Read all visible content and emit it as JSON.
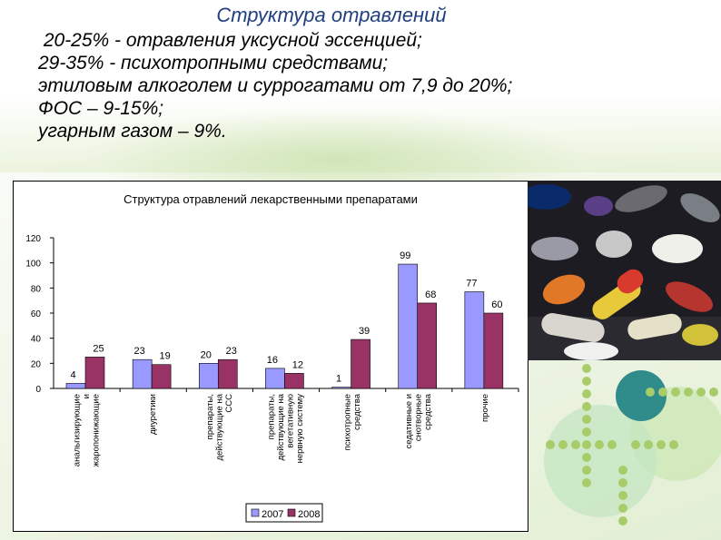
{
  "heading": {
    "title": "Структура отравлений",
    "lines": [
      " 20-25% - отравления уксусной эссенцией;",
      "29-35% - психотропными средствами;",
      "этиловым алкоголем и суррогатами от 7,9 до 20%;",
      "ФОС – 9-15%;",
      "угарным газом – 9%."
    ]
  },
  "chart_data": {
    "type": "bar",
    "title": "Структура отравлений лекарственными препаратами",
    "categories": [
      [
        "анальгизирующие",
        "и",
        "жаропонижающие"
      ],
      [
        "диуретики"
      ],
      [
        "препараты,",
        "действующие на",
        "ССС"
      ],
      [
        "препараты,",
        "действующие на",
        "вегетативную",
        "нервную систему"
      ],
      [
        "психотропные",
        "средства"
      ],
      [
        "седативные и",
        "снотворные",
        "средства"
      ],
      [
        "прочие"
      ]
    ],
    "series": [
      {
        "name": "2007",
        "color": "#9999ff",
        "values": [
          4,
          23,
          20,
          16,
          1,
          99,
          77
        ]
      },
      {
        "name": "2008",
        "color": "#993366",
        "values": [
          25,
          19,
          23,
          12,
          39,
          68,
          60
        ]
      }
    ],
    "ylim": [
      0,
      120
    ],
    "yticks": [
      "0",
      "20",
      "40",
      "60",
      "80",
      "100",
      "120"
    ],
    "grid": false,
    "legend_position": "bottom"
  }
}
